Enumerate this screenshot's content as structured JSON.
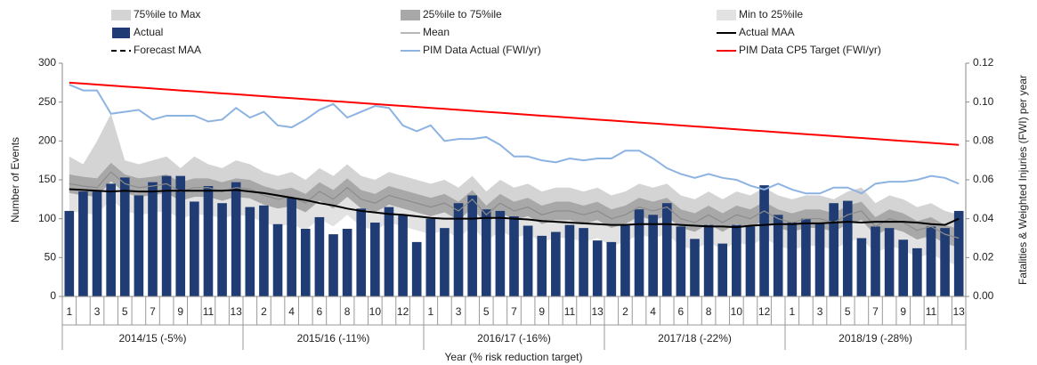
{
  "chart_data": {
    "type": "combo",
    "y_label": "Number of Events",
    "y2_label": "Fatalities & Weighted Injuries (FWI) per year",
    "x_label": "Year (% risk reduction target)",
    "categories": [
      "1",
      null,
      "3",
      null,
      "5",
      null,
      "7",
      null,
      "9",
      null,
      "11",
      null,
      "13",
      null,
      "2",
      null,
      "4",
      null,
      "6",
      null,
      "8",
      null,
      "10",
      null,
      "12",
      null,
      "1",
      null,
      "3",
      null,
      "5",
      null,
      "7",
      null,
      "9",
      null,
      "11",
      null,
      "13",
      null,
      "2",
      null,
      "4",
      null,
      "6",
      null,
      "8",
      null,
      "10",
      null,
      "12",
      null,
      "1",
      null,
      "3",
      null,
      "5",
      null,
      "7",
      null,
      "9",
      null,
      "11",
      null,
      "13"
    ],
    "groups": [
      "2014/15 (-5%)",
      "2015/16 (-11%)",
      "2016/17 (-16%)",
      "2017/18 (-22%)",
      "2018/19 (-28%)"
    ],
    "ylim": [
      0,
      300
    ],
    "yticks": [
      0,
      50,
      100,
      150,
      200,
      250,
      300
    ],
    "y2lim": [
      0,
      0.12
    ],
    "y2ticks": [
      {
        "value": 0,
        "label": "0.00"
      },
      {
        "value": 0.02,
        "label": "0.02"
      },
      {
        "value": 0.04,
        "label": "0.04"
      },
      {
        "value": 0.06,
        "label": "0.06"
      },
      {
        "value": 0.08,
        "label": "0.08"
      },
      {
        "value": 0.1,
        "label": "0.10"
      },
      {
        "value": 0.12,
        "label": "0.12"
      }
    ],
    "series": [
      {
        "name": "75%ile to Max",
        "style": "band",
        "color": "#d4d4d4",
        "low": [
          157,
          154,
          152,
          172,
          157,
          152,
          154,
          157,
          147,
          152,
          152,
          147,
          152,
          150,
          142,
          137,
          140,
          132,
          147,
          137,
          152,
          137,
          132,
          142,
          137,
          132,
          127,
          132,
          122,
          137,
          117,
          132,
          122,
          127,
          117,
          122,
          122,
          117,
          122,
          112,
          117,
          127,
          122,
          127,
          112,
          107,
          117,
          107,
          117,
          112,
          122,
          112,
          107,
          112,
          112,
          107,
          117,
          122,
          102,
          112,
          107,
          97,
          102,
          92,
          87
        ],
        "high": [
          180,
          170,
          200,
          235,
          175,
          170,
          175,
          180,
          165,
          180,
          170,
          165,
          175,
          170,
          160,
          155,
          160,
          150,
          165,
          155,
          170,
          155,
          150,
          160,
          155,
          150,
          145,
          150,
          140,
          155,
          135,
          150,
          140,
          145,
          135,
          140,
          140,
          135,
          140,
          130,
          135,
          145,
          140,
          145,
          130,
          125,
          135,
          125,
          135,
          130,
          140,
          130,
          125,
          130,
          130,
          125,
          135,
          140,
          120,
          130,
          125,
          115,
          120,
          110,
          105
        ]
      },
      {
        "name": "25%ile to 75%ile",
        "style": "band",
        "color": "#a8a8a8",
        "low": [
          133,
          130,
          128,
          148,
          133,
          128,
          130,
          133,
          123,
          128,
          128,
          123,
          128,
          126,
          118,
          113,
          116,
          108,
          123,
          113,
          128,
          113,
          108,
          118,
          113,
          108,
          103,
          108,
          98,
          113,
          93,
          108,
          98,
          103,
          93,
          98,
          98,
          93,
          98,
          88,
          93,
          103,
          98,
          103,
          88,
          83,
          93,
          83,
          93,
          88,
          98,
          88,
          83,
          88,
          88,
          83,
          93,
          98,
          78,
          88,
          83,
          73,
          78,
          68,
          63
        ],
        "high": [
          157,
          154,
          152,
          172,
          157,
          152,
          154,
          157,
          147,
          152,
          152,
          147,
          152,
          150,
          142,
          137,
          140,
          132,
          147,
          137,
          152,
          137,
          132,
          142,
          137,
          132,
          127,
          132,
          122,
          137,
          117,
          132,
          122,
          127,
          117,
          122,
          122,
          117,
          122,
          112,
          117,
          127,
          122,
          127,
          112,
          107,
          117,
          107,
          117,
          112,
          122,
          112,
          107,
          112,
          112,
          107,
          117,
          122,
          102,
          112,
          107,
          97,
          102,
          92,
          87
        ]
      },
      {
        "name": "Min to 25%ile",
        "style": "band",
        "color": "#e2e2e2",
        "low": [
          110,
          107,
          105,
          125,
          110,
          105,
          107,
          110,
          100,
          105,
          105,
          100,
          105,
          103,
          95,
          90,
          93,
          85,
          100,
          90,
          105,
          90,
          85,
          95,
          90,
          85,
          80,
          85,
          75,
          90,
          70,
          85,
          75,
          80,
          70,
          75,
          75,
          70,
          75,
          65,
          70,
          80,
          75,
          80,
          65,
          60,
          70,
          60,
          70,
          65,
          75,
          65,
          60,
          65,
          65,
          60,
          70,
          75,
          55,
          65,
          60,
          50,
          55,
          45,
          40
        ],
        "high": [
          133,
          130,
          128,
          148,
          133,
          128,
          130,
          133,
          123,
          128,
          128,
          123,
          128,
          126,
          118,
          113,
          116,
          108,
          123,
          113,
          128,
          113,
          108,
          118,
          113,
          108,
          103,
          108,
          98,
          113,
          93,
          108,
          98,
          103,
          93,
          98,
          98,
          93,
          98,
          88,
          93,
          103,
          98,
          103,
          88,
          83,
          93,
          83,
          93,
          88,
          98,
          88,
          83,
          88,
          88,
          83,
          93,
          98,
          78,
          88,
          83,
          73,
          78,
          68,
          63
        ]
      },
      {
        "name": "Actual",
        "style": "bar",
        "color": "#203c74",
        "values": [
          110,
          135,
          135,
          145,
          153,
          130,
          147,
          155,
          155,
          122,
          142,
          120,
          147,
          115,
          117,
          93,
          127,
          87,
          102,
          80,
          87,
          113,
          95,
          115,
          105,
          70,
          100,
          88,
          120,
          130,
          112,
          110,
          103,
          91,
          78,
          83,
          92,
          88,
          72,
          70,
          91,
          112,
          105,
          120,
          90,
          74,
          92,
          68,
          92,
          90,
          143,
          105,
          95,
          100,
          95,
          120,
          123,
          75,
          90,
          88,
          73,
          62,
          90,
          88,
          110
        ]
      },
      {
        "name": "Mean",
        "style": "line",
        "color": "#8c8c8c",
        "width": 1.2,
        "values": [
          145,
          142,
          140,
          160,
          145,
          140,
          142,
          145,
          135,
          140,
          140,
          135,
          140,
          138,
          130,
          125,
          128,
          120,
          135,
          125,
          140,
          125,
          120,
          130,
          125,
          120,
          115,
          120,
          110,
          125,
          105,
          120,
          110,
          115,
          105,
          110,
          110,
          105,
          110,
          100,
          105,
          115,
          110,
          115,
          100,
          95,
          105,
          95,
          105,
          100,
          110,
          100,
          95,
          100,
          100,
          95,
          105,
          110,
          90,
          100,
          95,
          85,
          90,
          80,
          75
        ]
      },
      {
        "name": "Actual MAA",
        "style": "line",
        "color": "#000000",
        "width": 2,
        "values": [
          138,
          137,
          136,
          135,
          136,
          135,
          135,
          136,
          136,
          136,
          136,
          136,
          137,
          135,
          133,
          130,
          127,
          124,
          120,
          117,
          113,
          110,
          108,
          106,
          105,
          103,
          101,
          100,
          100,
          100,
          101,
          101,
          100,
          99,
          97,
          96,
          95,
          94,
          93,
          92,
          92,
          93,
          93,
          93,
          92,
          91,
          90,
          90,
          89,
          91,
          92,
          93,
          93,
          94,
          94,
          95,
          96,
          95,
          96,
          96,
          96,
          95,
          93,
          92,
          100
        ]
      },
      {
        "name": "Forecast MAA",
        "style": "line",
        "color": "#000000",
        "width": 2,
        "dash": true,
        "values": [
          null,
          null,
          null,
          null,
          null,
          null,
          null,
          null,
          null,
          null,
          null,
          null,
          null,
          null,
          null,
          null,
          null,
          null,
          null,
          null,
          null,
          null,
          null,
          null,
          null,
          null,
          null,
          null,
          null,
          null,
          null,
          null,
          null,
          null,
          null,
          null,
          null,
          null,
          null,
          null,
          null,
          null,
          null,
          null,
          null,
          null,
          null,
          null,
          null,
          null,
          null,
          null,
          null,
          null,
          null,
          null,
          null,
          null,
          null,
          null,
          null,
          null,
          null,
          null,
          null
        ]
      },
      {
        "name": "PIM Data Actual (FWI/yr)",
        "style": "line",
        "color": "#8db3e2",
        "width": 2,
        "axis": "y2",
        "values": [
          0.109,
          0.106,
          0.106,
          0.094,
          0.095,
          0.096,
          0.091,
          0.093,
          0.093,
          0.093,
          0.09,
          0.091,
          0.097,
          0.092,
          0.095,
          0.088,
          0.087,
          0.091,
          0.096,
          0.099,
          0.092,
          0.095,
          0.098,
          0.097,
          0.088,
          0.085,
          0.088,
          0.08,
          0.081,
          0.081,
          0.082,
          0.078,
          0.072,
          0.072,
          0.07,
          0.069,
          0.071,
          0.07,
          0.071,
          0.071,
          0.075,
          0.075,
          0.071,
          0.066,
          0.063,
          0.061,
          0.063,
          0.061,
          0.06,
          0.057,
          0.055,
          0.058,
          0.055,
          0.053,
          0.053,
          0.056,
          0.056,
          0.053,
          0.058,
          0.059,
          0.059,
          0.06,
          0.062,
          0.061,
          0.058
        ]
      },
      {
        "name": "PIM Data CP5 Target (FWI/yr)",
        "style": "line",
        "color": "#ff0000",
        "width": 2,
        "axis": "y2",
        "values": [
          0.11,
          0.1095,
          0.109,
          0.1085,
          0.108,
          0.1075,
          0.107,
          0.1065,
          0.106,
          0.1055,
          0.105,
          0.1045,
          0.104,
          0.1035,
          0.103,
          0.1025,
          0.102,
          0.1015,
          0.101,
          0.1005,
          0.1,
          0.0995,
          0.099,
          0.0985,
          0.098,
          0.0975,
          0.097,
          0.0965,
          0.096,
          0.0955,
          0.095,
          0.0945,
          0.094,
          0.0935,
          0.093,
          0.0925,
          0.092,
          0.0915,
          0.091,
          0.0905,
          0.09,
          0.0895,
          0.089,
          0.0885,
          0.088,
          0.0875,
          0.087,
          0.0865,
          0.086,
          0.0855,
          0.085,
          0.0845,
          0.084,
          0.0835,
          0.083,
          0.0825,
          0.082,
          0.0815,
          0.081,
          0.0805,
          0.08,
          0.0795,
          0.079,
          0.0785,
          0.078
        ]
      }
    ]
  }
}
